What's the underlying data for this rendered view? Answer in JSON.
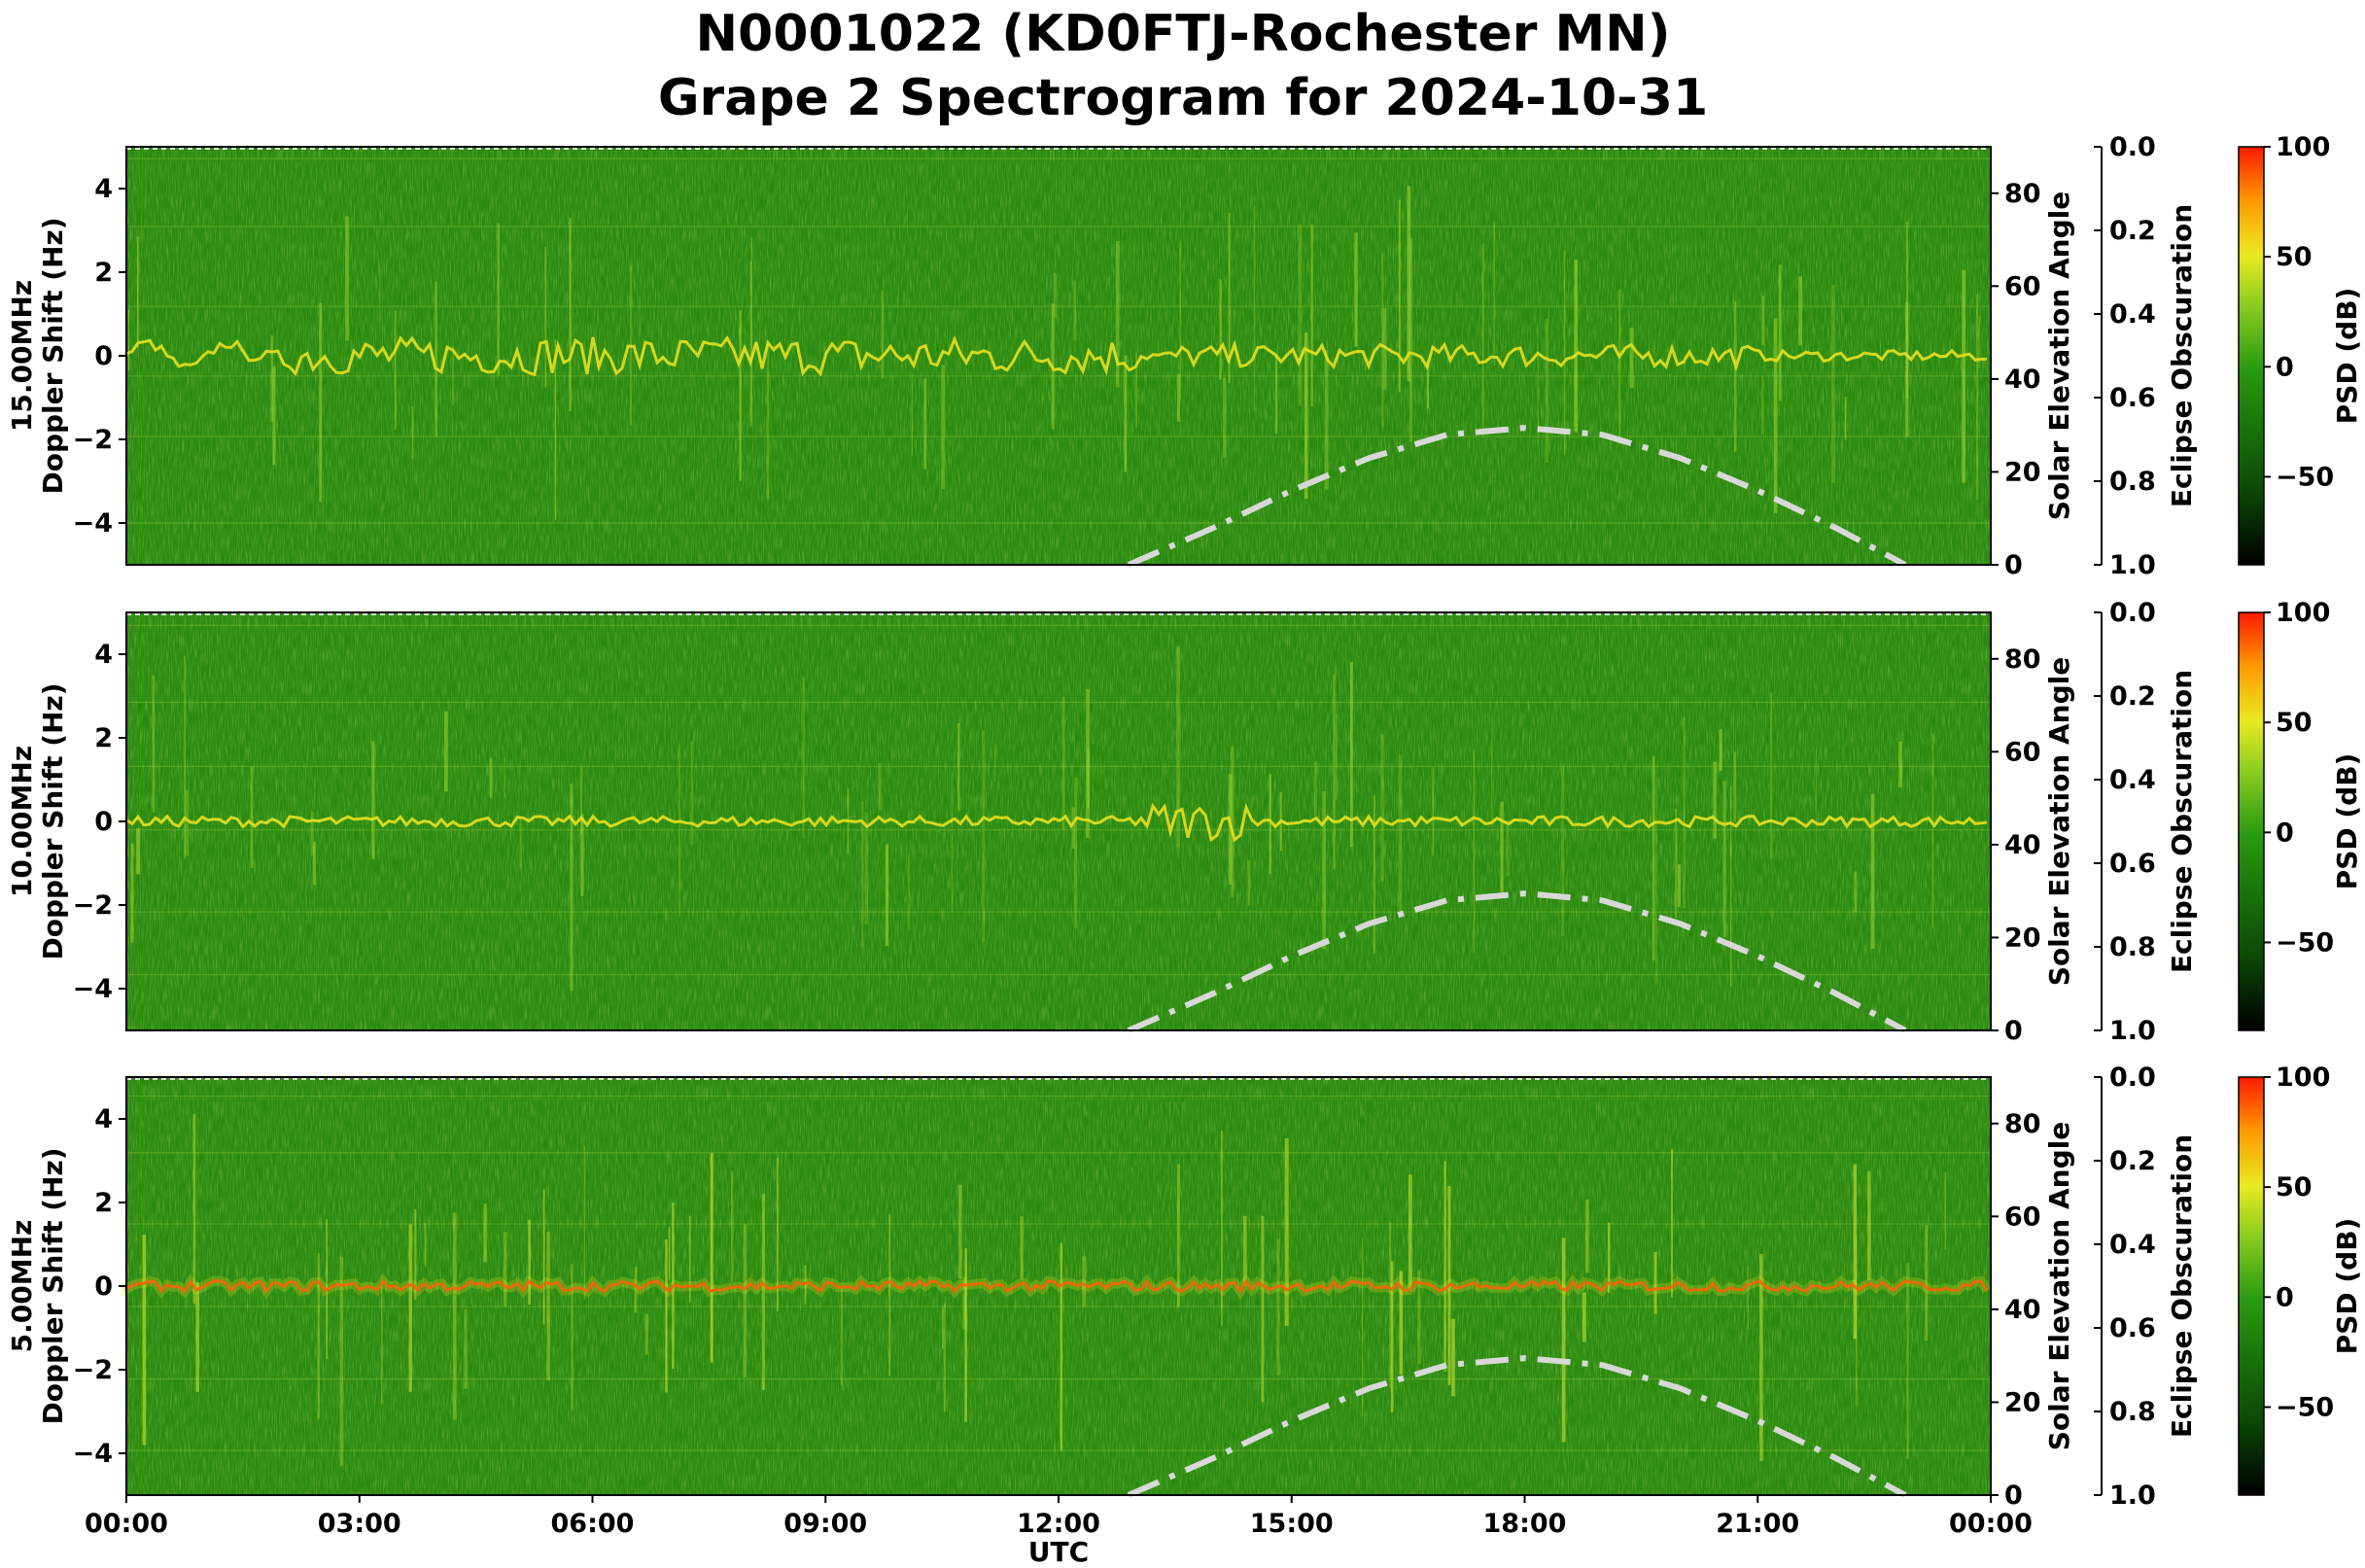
{
  "title": {
    "line1": "N0001022 (KD0FTJ-Rochester MN)",
    "line2": "Grape 2 Spectrogram for 2024-10-31"
  },
  "colors": {
    "background_green": "#2a8a10",
    "trace_yellow": "#e8e020",
    "trace_red": "#ff3a00",
    "solar_curve": "#d8d8d8"
  },
  "chart_data": [
    {
      "type": "heatmap",
      "panel_label": "15.00MHz",
      "ylabel": "Doppler Shift (Hz)",
      "xlabel": "",
      "ylim": [
        -5,
        5
      ],
      "xlim": [
        "00:00",
        "00:00"
      ],
      "y_ticks": [
        "4",
        "2",
        "0",
        "−2",
        "−4"
      ],
      "right_axis": {
        "label": "Solar Elevation Angle",
        "ylim": [
          0,
          90
        ],
        "ticks": [
          "0",
          "20",
          "40",
          "60",
          "80"
        ]
      },
      "eclipse_axis": {
        "label": "Eclipse Obscuration",
        "ylim": [
          1.0,
          0.0
        ],
        "ticks": [
          "0.0",
          "0.2",
          "0.4",
          "0.6",
          "0.8",
          "1.0"
        ]
      },
      "colorbar": {
        "label": "PSD (dB)",
        "range": [
          -90,
          100
        ],
        "ticks": [
          "100",
          "50",
          "0",
          "−50"
        ]
      },
      "solar_elevation": {
        "x_hours": [
          12.9,
          14,
          15,
          16,
          17,
          18,
          19,
          20,
          21,
          22,
          22.9
        ],
        "deg": [
          0,
          8,
          16,
          23,
          28,
          29.5,
          28,
          23,
          16,
          8,
          0
        ]
      }
    },
    {
      "type": "heatmap",
      "panel_label": "10.00MHz",
      "ylabel": "Doppler Shift (Hz)",
      "xlabel": "",
      "ylim": [
        -5,
        5
      ],
      "xlim": [
        "00:00",
        "00:00"
      ],
      "y_ticks": [
        "4",
        "2",
        "0",
        "−2",
        "−4"
      ],
      "right_axis": {
        "label": "Solar Elevation Angle",
        "ylim": [
          0,
          90
        ],
        "ticks": [
          "0",
          "20",
          "40",
          "60",
          "80"
        ]
      },
      "eclipse_axis": {
        "label": "Eclipse Obscuration",
        "ylim": [
          1.0,
          0.0
        ],
        "ticks": [
          "0.0",
          "0.2",
          "0.4",
          "0.6",
          "0.8",
          "1.0"
        ]
      },
      "colorbar": {
        "label": "PSD (dB)",
        "range": [
          -90,
          100
        ],
        "ticks": [
          "100",
          "50",
          "0",
          "−50"
        ]
      },
      "solar_elevation": {
        "x_hours": [
          12.9,
          14,
          15,
          16,
          17,
          18,
          19,
          20,
          21,
          22,
          22.9
        ],
        "deg": [
          0,
          8,
          16,
          23,
          28,
          29.5,
          28,
          23,
          16,
          8,
          0
        ]
      }
    },
    {
      "type": "heatmap",
      "panel_label": "5.00MHz",
      "ylabel": "Doppler Shift (Hz)",
      "xlabel": "UTC",
      "ylim": [
        -5,
        5
      ],
      "xlim": [
        "00:00",
        "00:00"
      ],
      "y_ticks": [
        "4",
        "2",
        "0",
        "−2",
        "−4"
      ],
      "x_ticks": [
        "00:00",
        "03:00",
        "06:00",
        "09:00",
        "12:00",
        "15:00",
        "18:00",
        "21:00",
        "00:00"
      ],
      "right_axis": {
        "label": "Solar Elevation Angle",
        "ylim": [
          0,
          90
        ],
        "ticks": [
          "0",
          "20",
          "40",
          "60",
          "80"
        ]
      },
      "eclipse_axis": {
        "label": "Eclipse Obscuration",
        "ylim": [
          1.0,
          0.0
        ],
        "ticks": [
          "0.0",
          "0.2",
          "0.4",
          "0.6",
          "0.8",
          "1.0"
        ]
      },
      "colorbar": {
        "label": "PSD (dB)",
        "range": [
          -90,
          100
        ],
        "ticks": [
          "100",
          "50",
          "0",
          "−50"
        ]
      },
      "solar_elevation": {
        "x_hours": [
          12.9,
          14,
          15,
          16,
          17,
          18,
          19,
          20,
          21,
          22,
          22.9
        ],
        "deg": [
          0,
          8,
          16,
          23,
          28,
          29.5,
          28,
          23,
          16,
          8,
          0
        ]
      }
    }
  ]
}
